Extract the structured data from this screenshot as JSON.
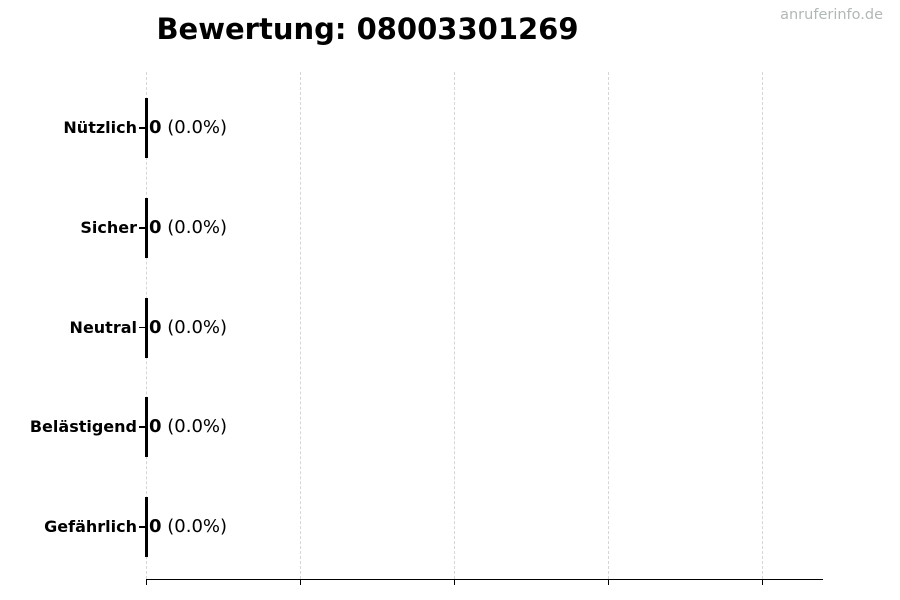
{
  "chart": {
    "title": "Bewertung: 08003301269",
    "watermark": "anruferinfo.de"
  },
  "colors": {
    "text": "#000000",
    "axis": "#000000",
    "grid": "#d6d6d6",
    "watermark": "#b1b7b7"
  },
  "chart_data": {
    "type": "bar",
    "orientation": "horizontal",
    "title": "Bewertung: 08003301269",
    "categories": [
      "Nützlich",
      "Sicher",
      "Neutral",
      "Belästigend",
      "Gefährlich"
    ],
    "values": [
      0,
      0,
      0,
      0,
      0
    ],
    "percent_labels": [
      "0.0%",
      "0.0%",
      "0.0%",
      "0.0%",
      "0.0%"
    ],
    "value_annotations": [
      "0 (0.0%)",
      "0 (0.0%)",
      "0 (0.0%)",
      "0 (0.0%)",
      "0 (0.0%)"
    ],
    "xlabel": "",
    "ylabel": "",
    "grid": "vertical-dashed",
    "x_gridline_count": 5,
    "x_tick_labels_visible": false,
    "legend": false,
    "bar_edge_color": "#000000",
    "bar_fill_width": 0
  }
}
